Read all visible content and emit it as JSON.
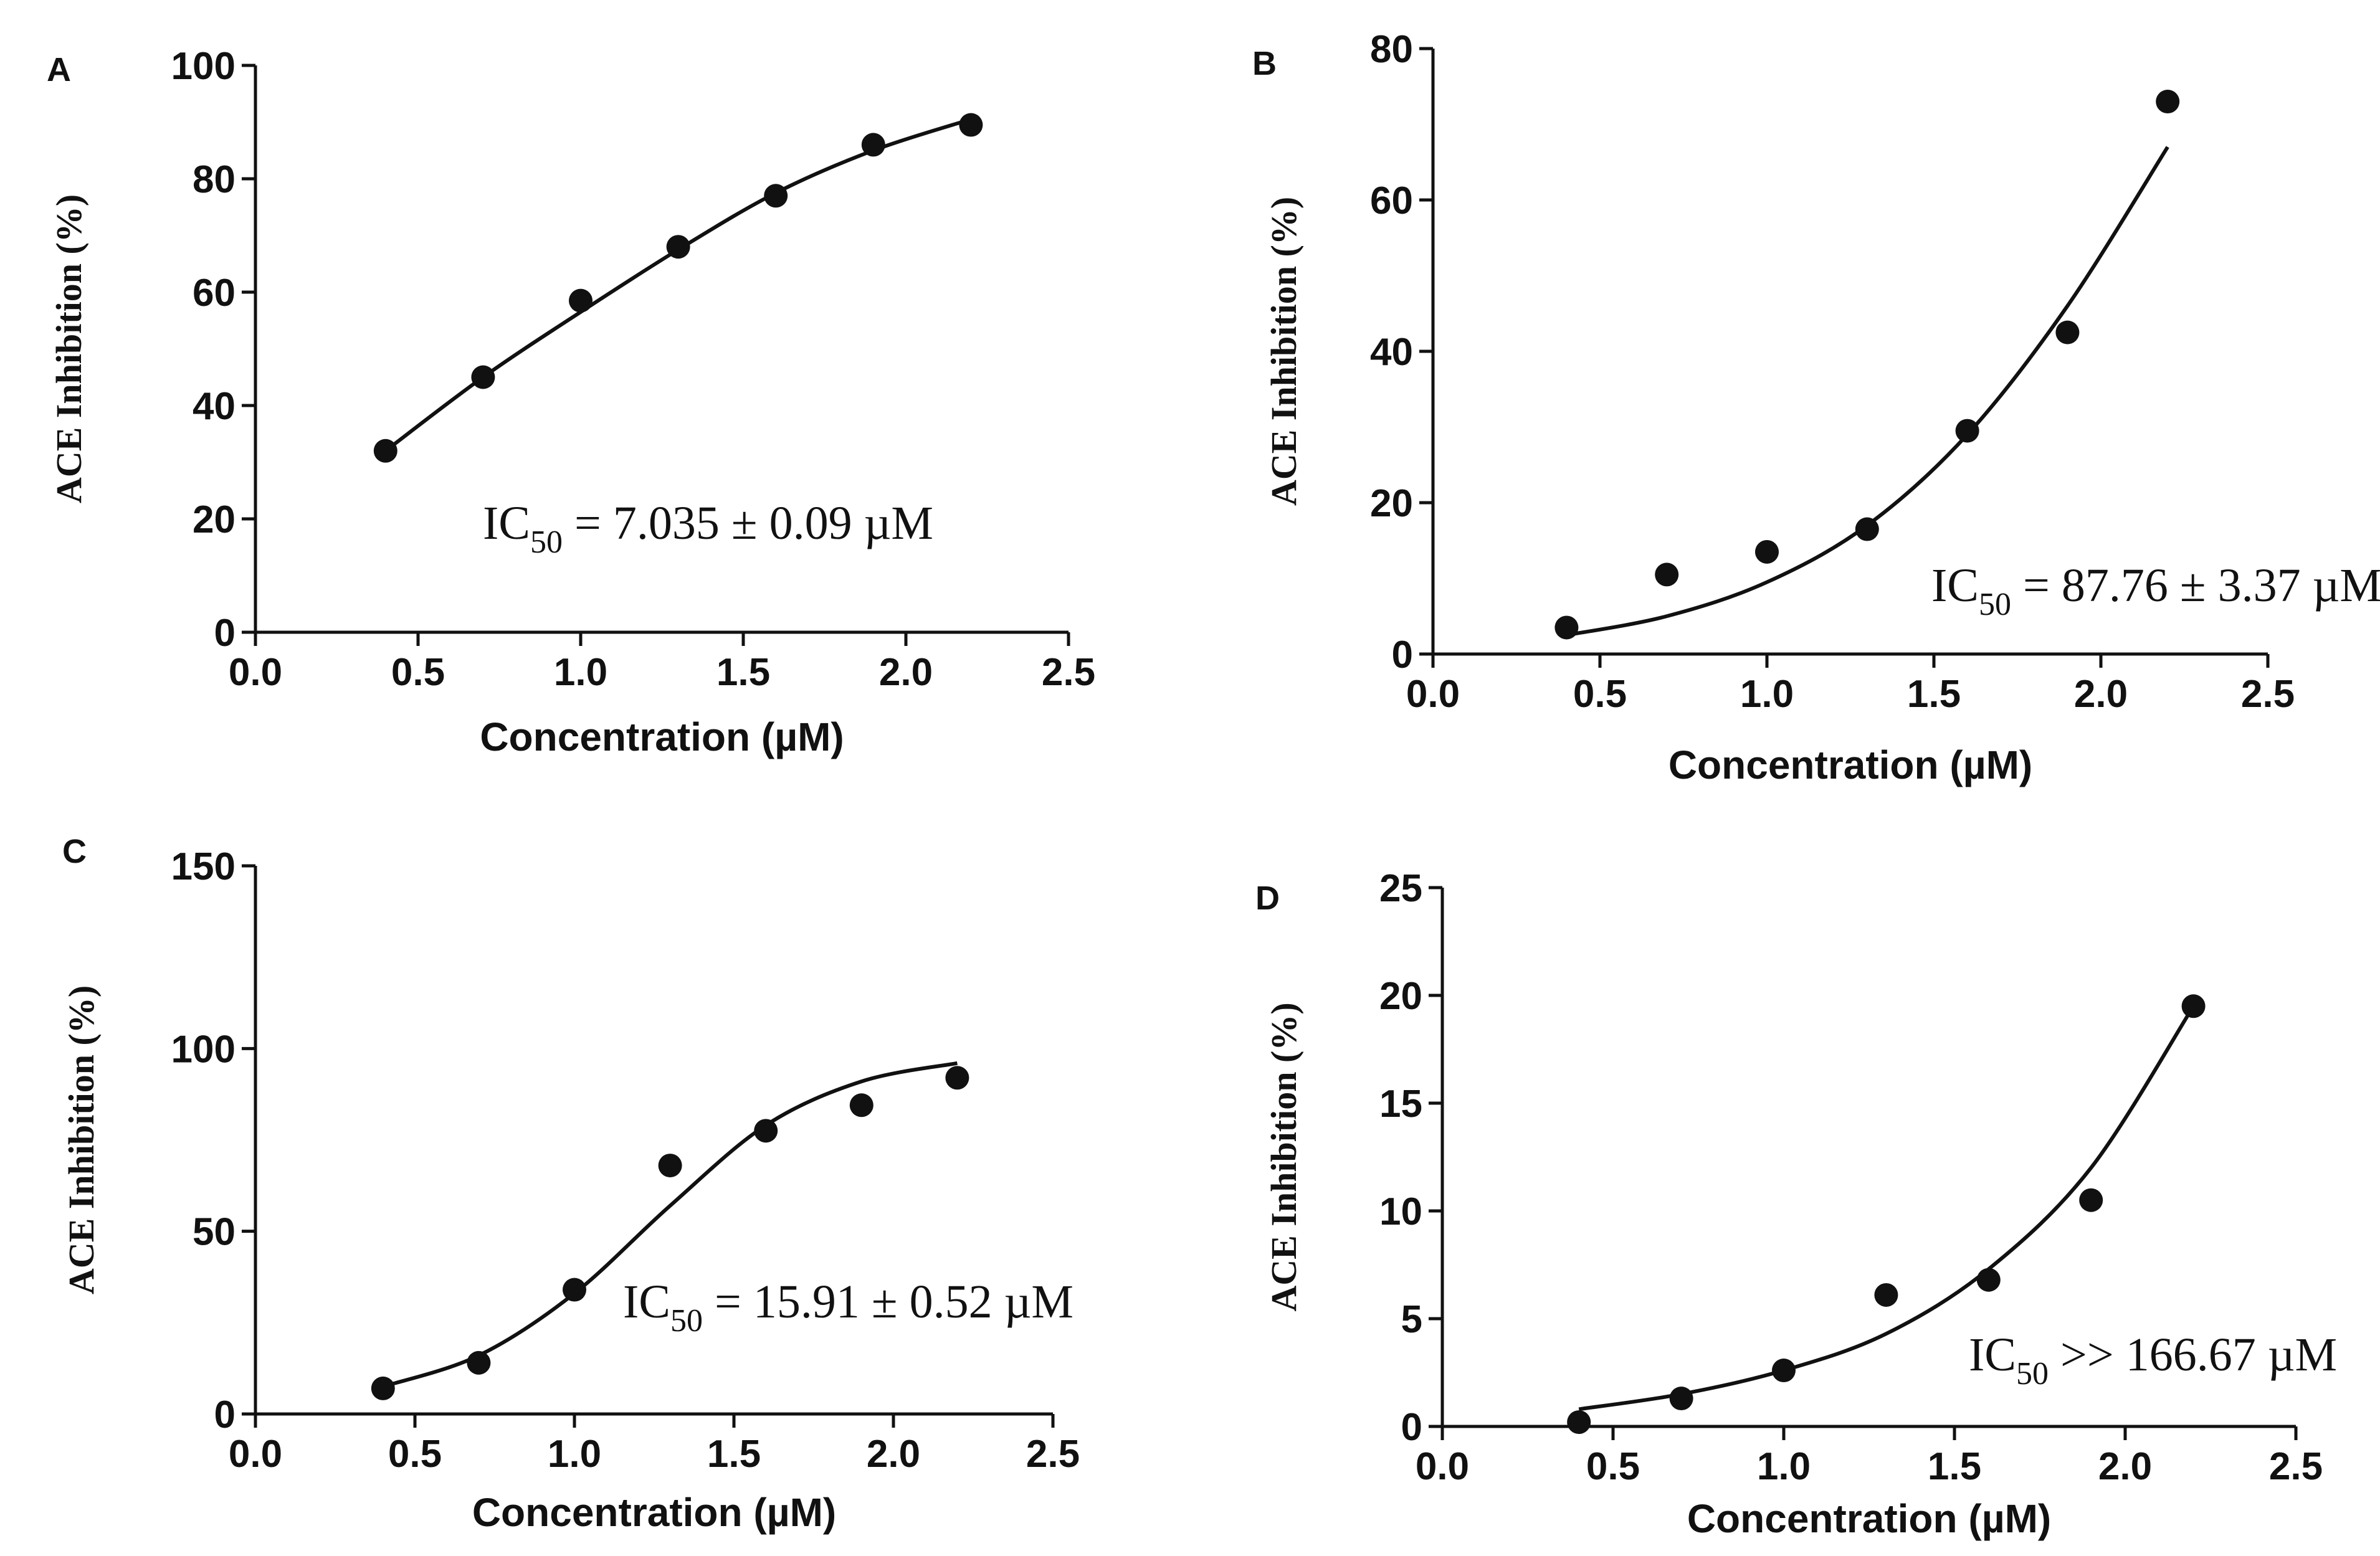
{
  "chart_data": [
    {
      "panel": "A",
      "type": "scatter",
      "xlabel": "Concentration (µM)",
      "ylabel": "ACE Inhibition (%)",
      "xlim": [
        0.0,
        2.5
      ],
      "ylim": [
        0,
        100
      ],
      "xticks": [
        "0.0",
        "0.5",
        "1.0",
        "1.5",
        "2.0",
        "2.5"
      ],
      "yticks": [
        "0",
        "20",
        "40",
        "60",
        "80",
        "100"
      ],
      "points": {
        "x": [
          0.4,
          0.7,
          1.0,
          1.3,
          1.6,
          1.9,
          2.2
        ],
        "y": [
          32,
          45,
          58.5,
          68,
          77,
          86,
          89.5
        ]
      },
      "fit": {
        "x": [
          0.4,
          0.7,
          1.0,
          1.3,
          1.6,
          1.9,
          2.2
        ],
        "y": [
          32,
          45,
          56.5,
          67.5,
          77.5,
          85,
          90.5
        ]
      },
      "annotation": {
        "prefix": "IC",
        "sub": "50",
        "text": " = 7.035 ± 0.09 µM"
      },
      "grid": false,
      "legend": "none"
    },
    {
      "panel": "B",
      "type": "scatter",
      "xlabel": "Concentration (µM)",
      "ylabel": "ACE Inhibition (%)",
      "xlim": [
        0.0,
        2.5
      ],
      "ylim": [
        0,
        80
      ],
      "xticks": [
        "0.0",
        "0.5",
        "1.0",
        "1.5",
        "2.0",
        "2.5"
      ],
      "yticks": [
        "0",
        "20",
        "40",
        "60",
        "80"
      ],
      "points": {
        "x": [
          0.4,
          0.7,
          1.0,
          1.3,
          1.6,
          1.9,
          2.2
        ],
        "y": [
          3.5,
          10.5,
          13.5,
          16.5,
          29.5,
          42.5,
          73
        ]
      },
      "fit": {
        "x": [
          0.4,
          0.7,
          1.0,
          1.3,
          1.6,
          1.9,
          2.2
        ],
        "y": [
          2.5,
          5,
          9.5,
          17,
          29,
          46,
          67
        ]
      },
      "annotation": {
        "prefix": "IC",
        "sub": "50",
        "text": " = 87.76 ± 3.37 µM"
      },
      "grid": false,
      "legend": "none"
    },
    {
      "panel": "C",
      "type": "scatter",
      "xlabel": "Concentration (µM)",
      "ylabel": "ACE Inhibition (%)",
      "xlim": [
        0.0,
        2.5
      ],
      "ylim": [
        0,
        150
      ],
      "xticks": [
        "0.0",
        "0.5",
        "1.0",
        "1.5",
        "2.0",
        "2.5"
      ],
      "yticks": [
        "0",
        "50",
        "100",
        "150"
      ],
      "points": {
        "x": [
          0.4,
          0.7,
          1.0,
          1.3,
          1.6,
          1.9,
          2.2
        ],
        "y": [
          7,
          14,
          34,
          68,
          77.5,
          84.5,
          92
        ]
      },
      "fit": {
        "x": [
          0.4,
          0.7,
          1.0,
          1.3,
          1.6,
          1.9,
          2.2
        ],
        "y": [
          7.5,
          16,
          33,
          57,
          79,
          91,
          96
        ]
      },
      "annotation": {
        "prefix": "IC",
        "sub": "50",
        "text": " = 15.91 ± 0.52 µM"
      },
      "grid": false,
      "legend": "none"
    },
    {
      "panel": "D",
      "type": "scatter",
      "xlabel": "Concentration (µM)",
      "ylabel": "ACE Inhibition (%)",
      "xlim": [
        0.0,
        2.5
      ],
      "ylim": [
        0,
        25
      ],
      "xticks": [
        "0.0",
        "0.5",
        "1.0",
        "1.5",
        "2.0",
        "2.5"
      ],
      "yticks": [
        "0",
        "5",
        "10",
        "15",
        "20",
        "25"
      ],
      "points": {
        "x": [
          0.4,
          0.7,
          1.0,
          1.3,
          1.6,
          1.9,
          2.2
        ],
        "y": [
          0.2,
          1.3,
          2.6,
          6.1,
          6.8,
          10.5,
          19.5
        ]
      },
      "fit": {
        "x": [
          0.4,
          0.7,
          1.0,
          1.3,
          1.6,
          1.9,
          2.2
        ],
        "y": [
          0.8,
          1.5,
          2.6,
          4.3,
          7.3,
          12,
          19.5
        ]
      },
      "annotation": {
        "prefix": "IC",
        "sub": "50",
        "text": " >> 166.67 µM"
      },
      "grid": false,
      "legend": "none"
    }
  ]
}
